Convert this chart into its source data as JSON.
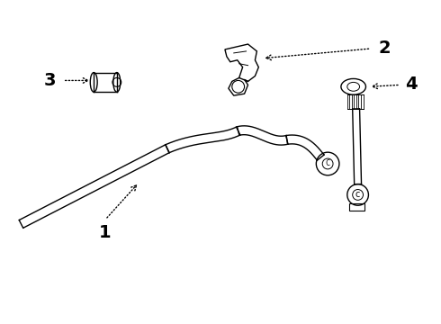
{
  "bg_color": "#ffffff",
  "line_color": "#000000",
  "lw": 1.0,
  "label_fontsize": 14,
  "label_fontweight": "bold",
  "fig_w": 4.9,
  "fig_h": 3.6,
  "dpi": 100
}
